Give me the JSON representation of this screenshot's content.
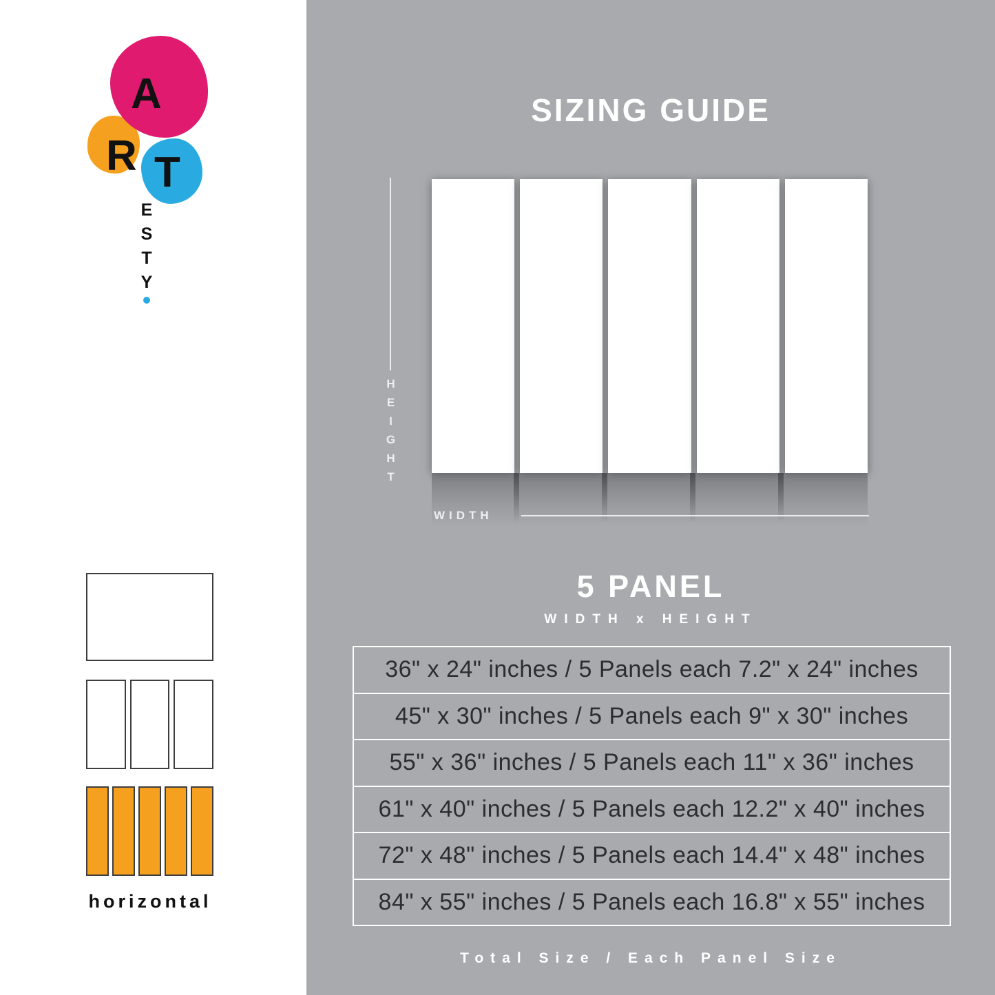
{
  "colors": {
    "background_gray": "#a8aaad",
    "pink": "#e01a6f",
    "orange": "#f5a11f",
    "blue": "#29abe2",
    "table_text": "#2c2d31"
  },
  "logo": {
    "letters": [
      "A",
      "R",
      "T"
    ],
    "sub_letters": [
      "E",
      "S",
      "T",
      "Y"
    ]
  },
  "sidebar": {
    "layout_options": [
      {
        "label": "1 panel",
        "panels": 1,
        "selected": false
      },
      {
        "label": "3 panel",
        "panels": 3,
        "selected": false
      },
      {
        "label": "5 panel",
        "panels": 5,
        "selected": true
      }
    ],
    "orientation_label": "horizontal"
  },
  "main": {
    "title": "SIZING GUIDE",
    "diagram": {
      "height_label": "HEIGHT",
      "width_label": "WIDTH",
      "panel_count": 5
    },
    "subtitle": "5 PANEL",
    "dimension_format": "WIDTH x HEIGHT",
    "size_rows": [
      "36\" x 24\" inches / 5 Panels each 7.2\" x 24\" inches",
      "45\" x 30\" inches / 5 Panels each 9\" x 30\" inches",
      "55\" x 36\" inches / 5 Panels each 11\" x 36\" inches",
      "61\" x 40\" inches / 5 Panels each 12.2\" x 40\" inches",
      "72\" x 48\" inches / 5 Panels each 14.4\" x 48\" inches",
      "84\" x 55\" inches / 5 Panels each 16.8\" x 55\" inches"
    ],
    "footer": "Total Size / Each Panel Size"
  }
}
